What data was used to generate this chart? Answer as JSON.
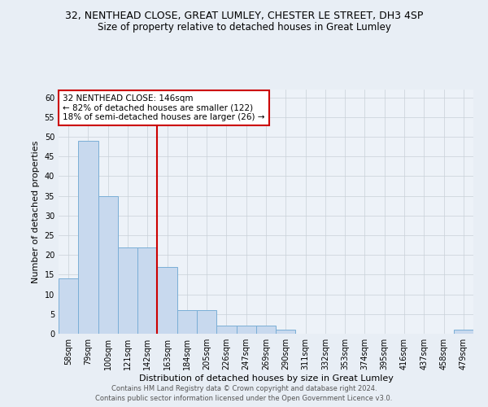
{
  "title1": "32, NENTHEAD CLOSE, GREAT LUMLEY, CHESTER LE STREET, DH3 4SP",
  "title2": "Size of property relative to detached houses in Great Lumley",
  "xlabel": "Distribution of detached houses by size in Great Lumley",
  "ylabel": "Number of detached properties",
  "categories": [
    "58sqm",
    "79sqm",
    "100sqm",
    "121sqm",
    "142sqm",
    "163sqm",
    "184sqm",
    "205sqm",
    "226sqm",
    "247sqm",
    "269sqm",
    "290sqm",
    "311sqm",
    "332sqm",
    "353sqm",
    "374sqm",
    "395sqm",
    "416sqm",
    "437sqm",
    "458sqm",
    "479sqm"
  ],
  "values": [
    14,
    49,
    35,
    22,
    22,
    17,
    6,
    6,
    2,
    2,
    2,
    1,
    0,
    0,
    0,
    0,
    0,
    0,
    0,
    0,
    1
  ],
  "bar_color": "#c8d9ee",
  "bar_edge_color": "#7aaed6",
  "ylim": [
    0,
    62
  ],
  "yticks": [
    0,
    5,
    10,
    15,
    20,
    25,
    30,
    35,
    40,
    45,
    50,
    55,
    60
  ],
  "red_line_x": 4.5,
  "annotation_text": "32 NENTHEAD CLOSE: 146sqm\n← 82% of detached houses are smaller (122)\n18% of semi-detached houses are larger (26) →",
  "annotation_box_color": "#ffffff",
  "annotation_border_color": "#cc0000",
  "footer1": "Contains HM Land Registry data © Crown copyright and database right 2024.",
  "footer2": "Contains public sector information licensed under the Open Government Licence v3.0.",
  "bg_color": "#e8eef5",
  "plot_bg_color": "#edf2f8",
  "grid_color": "#c8d0d8",
  "title1_fontsize": 9,
  "title2_fontsize": 8.5,
  "tick_fontsize": 7,
  "xlabel_fontsize": 8,
  "ylabel_fontsize": 8,
  "annot_fontsize": 7.5,
  "footer_fontsize": 6
}
